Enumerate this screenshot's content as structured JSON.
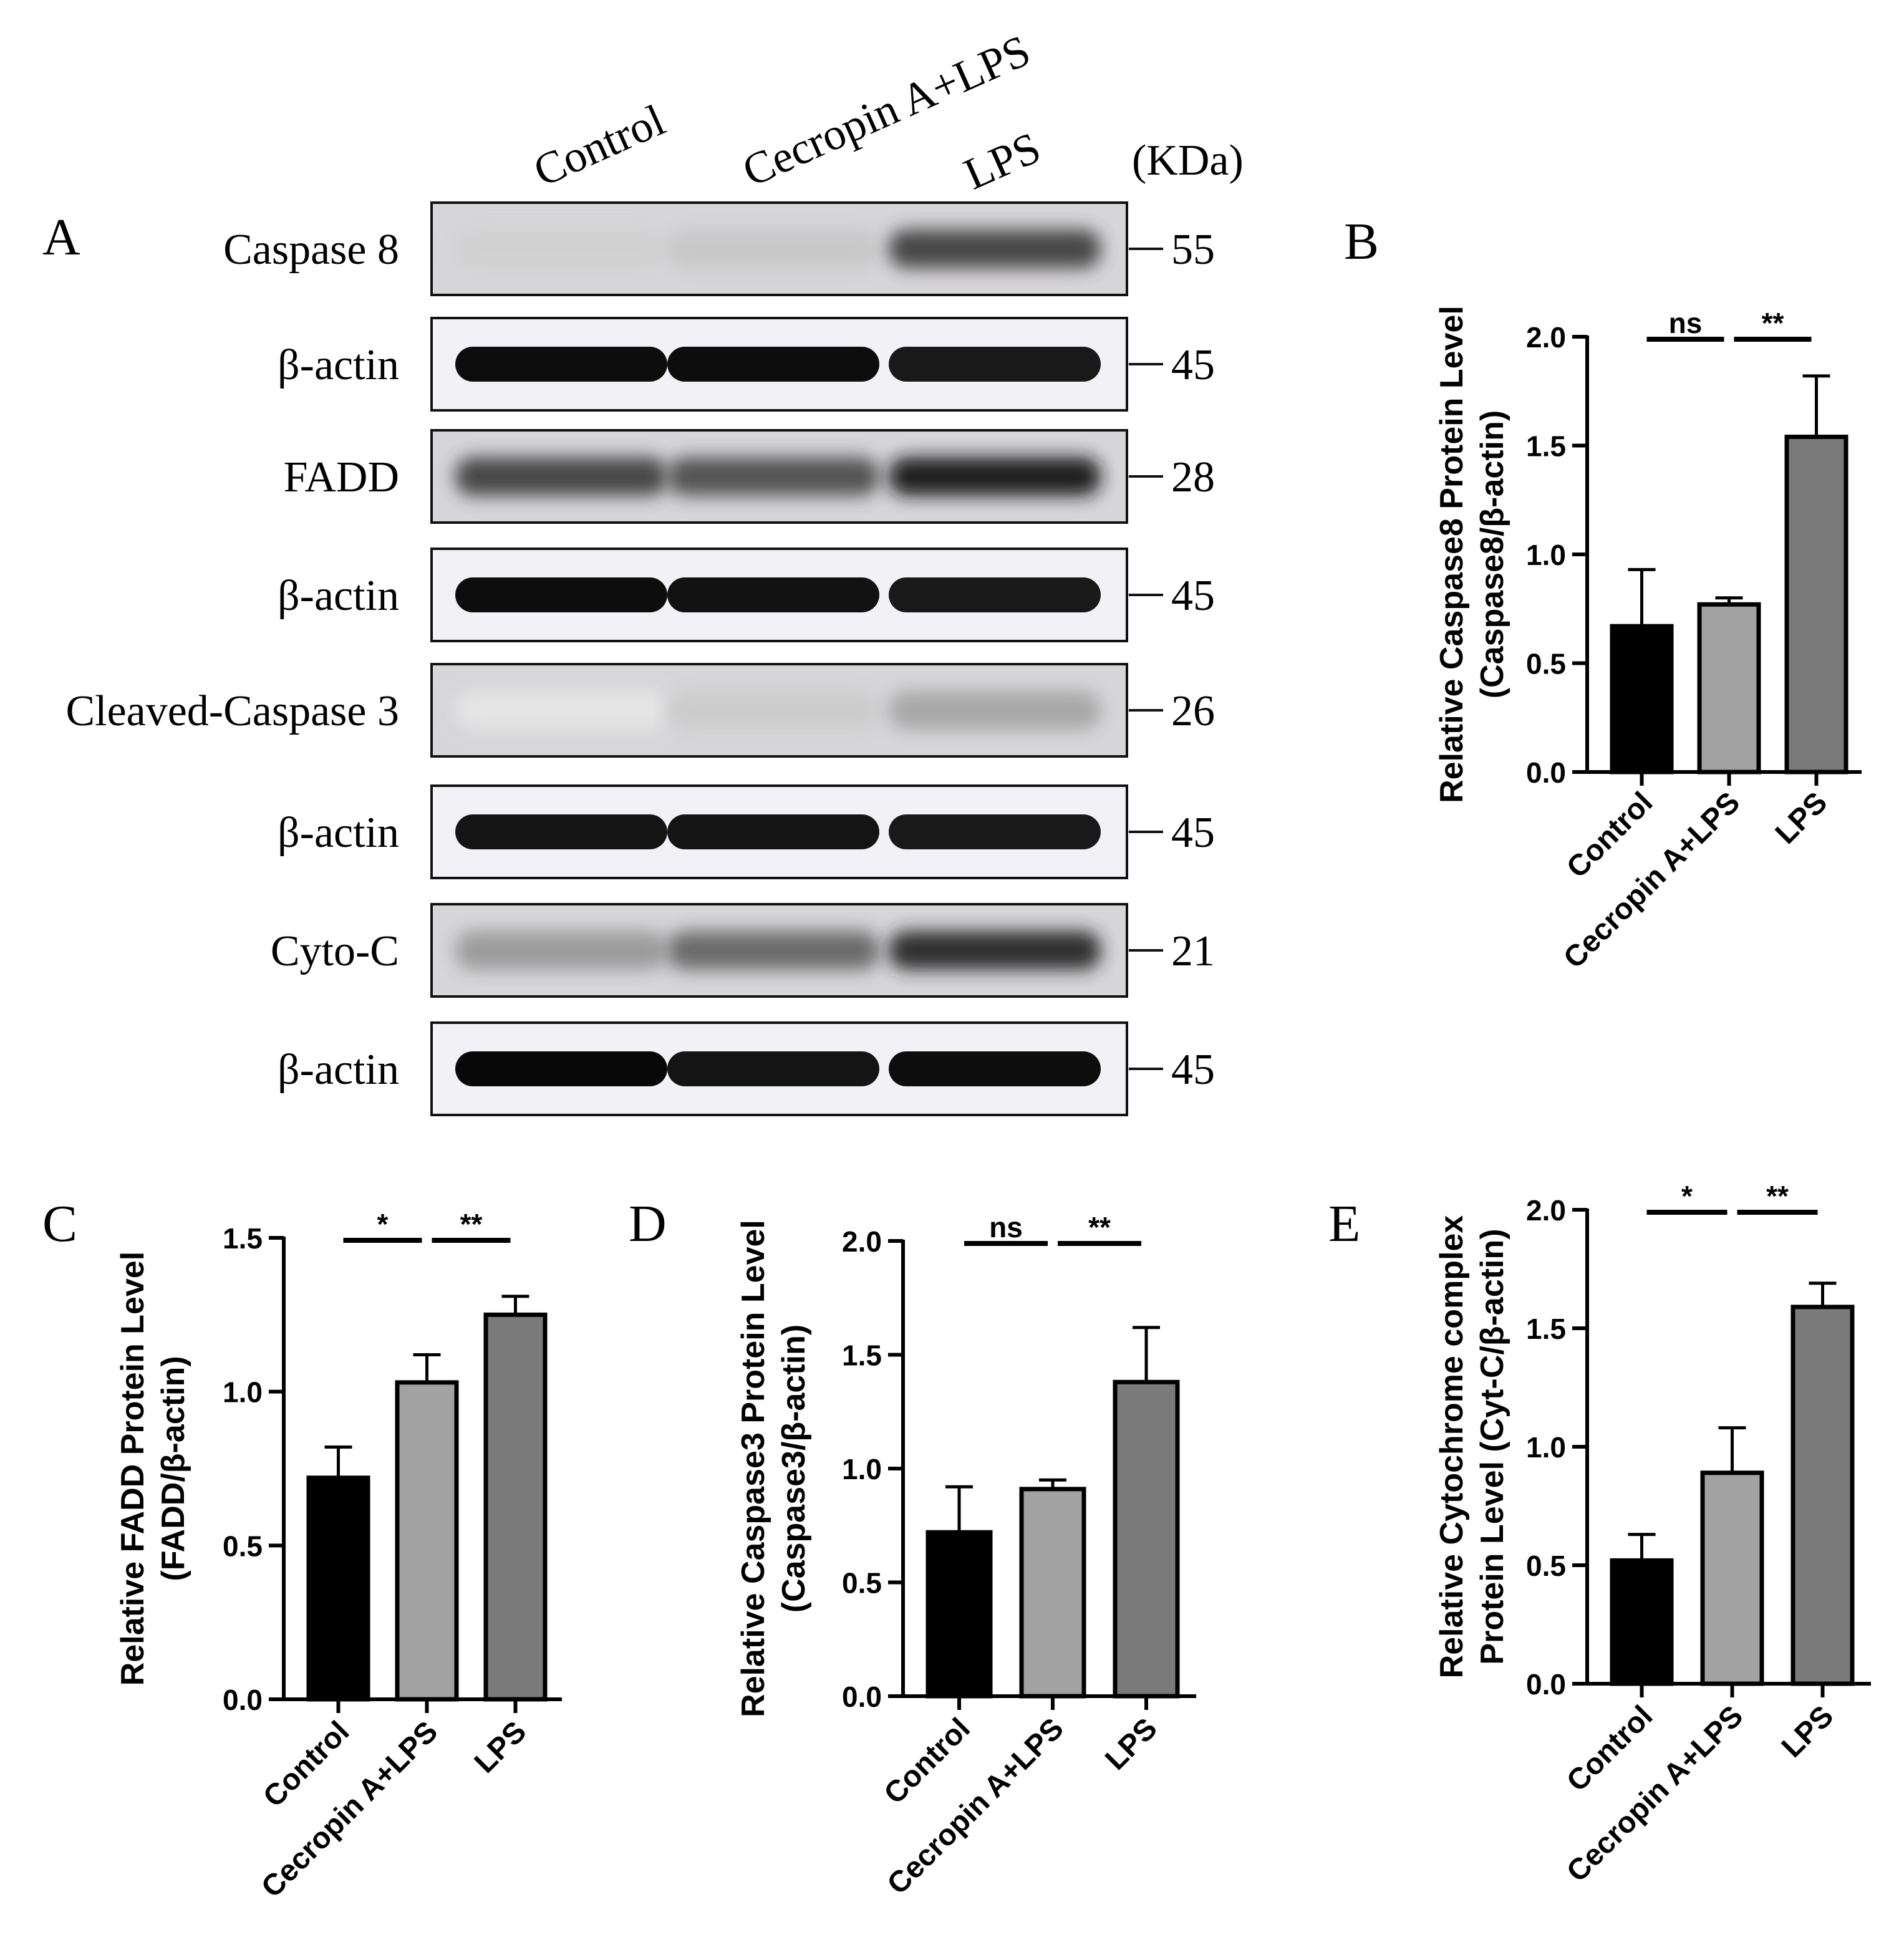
{
  "panel_a": {
    "letter": "A",
    "lane_labels": [
      "Control",
      "Cecropin A+LPS",
      "LPS"
    ],
    "unit_label": "(KDa)",
    "blots": [
      {
        "label": "Caspase 8",
        "kda": "55",
        "intensity": [
          0.18,
          0.22,
          0.75
        ]
      },
      {
        "label": "β-actin",
        "kda": "45",
        "intensity": [
          0.95,
          0.95,
          0.9
        ]
      },
      {
        "label": "FADD",
        "kda": "28",
        "intensity": [
          0.75,
          0.7,
          0.9
        ]
      },
      {
        "label": "β-actin",
        "kda": "45",
        "intensity": [
          0.95,
          0.93,
          0.9
        ]
      },
      {
        "label": "Cleaved-Caspase 3",
        "kda": "26",
        "intensity": [
          0.1,
          0.2,
          0.35
        ]
      },
      {
        "label": "β-actin",
        "kda": "45",
        "intensity": [
          0.92,
          0.92,
          0.9
        ]
      },
      {
        "label": "Cyto-C",
        "kda": "21",
        "intensity": [
          0.4,
          0.6,
          0.85
        ]
      },
      {
        "label": "β-actin",
        "kda": "45",
        "intensity": [
          0.97,
          0.92,
          0.95
        ]
      }
    ]
  },
  "chart_data": [
    {
      "panel": "B",
      "type": "bar",
      "categories": [
        "Control",
        "Cecropin A+LPS",
        "LPS"
      ],
      "values": [
        0.67,
        0.77,
        1.54
      ],
      "errors": [
        0.26,
        0.03,
        0.28
      ],
      "ylabel_lines": [
        "Relative Caspase8 Protein Level",
        "(Caspase8/β-actin)"
      ],
      "ylim": [
        0,
        2.0
      ],
      "yticks": [
        "0.0",
        "0.5",
        "1.0",
        "1.5",
        "2.0"
      ],
      "significance": [
        {
          "from": 0,
          "to": 1,
          "label": "ns"
        },
        {
          "from": 1,
          "to": 2,
          "label": "**"
        }
      ],
      "colors": [
        "#000000",
        "#a2a2a2",
        "#7a7a7a"
      ]
    },
    {
      "panel": "C",
      "type": "bar",
      "categories": [
        "Control",
        "Cecropin A+LPS",
        "LPS"
      ],
      "values": [
        0.72,
        1.03,
        1.25
      ],
      "errors": [
        0.1,
        0.09,
        0.06
      ],
      "ylabel_lines": [
        "Relative FADD Protein Level",
        "(FADD/β-actin)"
      ],
      "ylim": [
        0,
        1.5
      ],
      "yticks": [
        "0.0",
        "0.5",
        "1.0",
        "1.5"
      ],
      "significance": [
        {
          "from": 0,
          "to": 1,
          "label": "*"
        },
        {
          "from": 1,
          "to": 2,
          "label": "**"
        }
      ],
      "colors": [
        "#000000",
        "#a2a2a2",
        "#7a7a7a"
      ]
    },
    {
      "panel": "D",
      "type": "bar",
      "categories": [
        "Control",
        "Cecropin A+LPS",
        "LPS"
      ],
      "values": [
        0.72,
        0.91,
        1.38
      ],
      "errors": [
        0.2,
        0.04,
        0.24
      ],
      "ylabel_lines": [
        "Relative Caspase3 Protein Level",
        "(Caspase3/β-actin)"
      ],
      "ylim": [
        0,
        2.0
      ],
      "yticks": [
        "0.0",
        "0.5",
        "1.0",
        "1.5",
        "2.0"
      ],
      "significance": [
        {
          "from": 0,
          "to": 1,
          "label": "ns"
        },
        {
          "from": 1,
          "to": 2,
          "label": "**"
        }
      ],
      "colors": [
        "#000000",
        "#a2a2a2",
        "#7a7a7a"
      ]
    },
    {
      "panel": "E",
      "type": "bar",
      "categories": [
        "Control",
        "Cecropin A+LPS",
        "LPS"
      ],
      "values": [
        0.52,
        0.89,
        1.59
      ],
      "errors": [
        0.11,
        0.19,
        0.1
      ],
      "ylabel_lines": [
        "Relative Cytochrome complex",
        "Protein Level (Cyt-C/β-actin)"
      ],
      "ylim": [
        0,
        2.0
      ],
      "yticks": [
        "0.0",
        "0.5",
        "1.0",
        "1.5",
        "2.0"
      ],
      "significance": [
        {
          "from": 0,
          "to": 1,
          "label": "*"
        },
        {
          "from": 1,
          "to": 2,
          "label": "**"
        }
      ],
      "colors": [
        "#000000",
        "#a2a2a2",
        "#7a7a7a"
      ]
    }
  ]
}
